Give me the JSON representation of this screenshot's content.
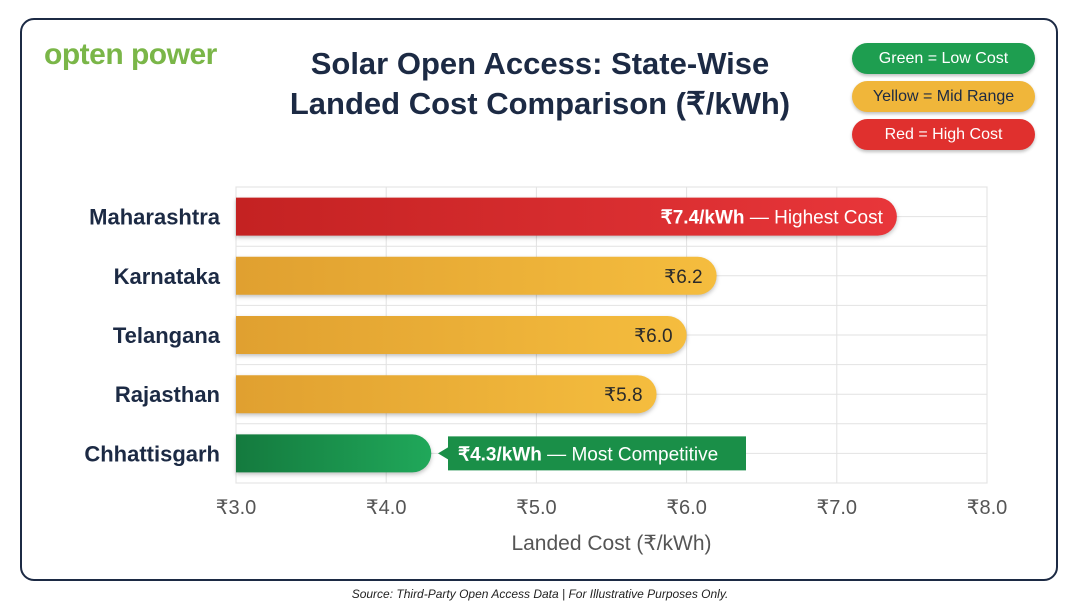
{
  "logo": "opten power",
  "title_line1": "Solar Open Access: State-Wise",
  "title_line2": "Landed Cost Comparison (₹/kWh)",
  "legend": [
    {
      "label": "Green = Low Cost",
      "color": "#1e9e50"
    },
    {
      "label": "Yellow = Mid Range",
      "color": "#f0b63a"
    },
    {
      "label": "Red = High Cost",
      "color": "#e0302e"
    }
  ],
  "source": "Source: Third-Party Open Access Data | For Illustrative Purposes Only.",
  "chart_data": {
    "type": "bar",
    "orientation": "horizontal",
    "categories": [
      "Maharashtra",
      "Karnataka",
      "Telangana",
      "Rajasthan",
      "Chhattisgarh"
    ],
    "values": [
      7.4,
      6.2,
      6.0,
      5.8,
      4.3
    ],
    "colors": [
      "#e0302e",
      "#f0b63a",
      "#f0b63a",
      "#f0b63a",
      "#1e9e50"
    ],
    "data_labels": [
      {
        "bold": "₹7.4/kWh",
        "rest": " — Highest Cost"
      },
      {
        "bold": "",
        "rest": "₹6.2"
      },
      {
        "bold": "",
        "rest": "₹6.0"
      },
      {
        "bold": "",
        "rest": "₹5.8"
      },
      {
        "bold": "₹4.3/kWh",
        "rest": " — Most Competitive"
      }
    ],
    "xlabel": "Landed Cost (₹/kWh)",
    "xlim": [
      3.0,
      8.0
    ],
    "xticks": [
      "₹3.0",
      "₹4.0",
      "₹5.0",
      "₹6.0",
      "₹7.0",
      "₹8.0"
    ],
    "grid": true
  }
}
